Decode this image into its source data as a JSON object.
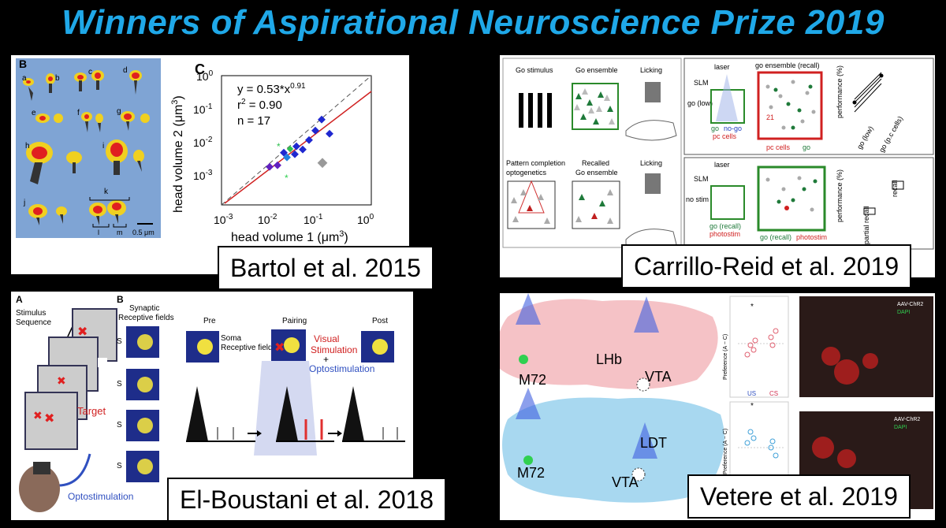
{
  "title": "Winners of Aspirational Neuroscience Prize 2019",
  "panels": {
    "p1": {
      "caption": "Bartol et al. 2015",
      "labels": {
        "B": "B",
        "C": "C",
        "a": "a",
        "b": "b",
        "c": "c",
        "d": "d",
        "e": "e",
        "f": "f",
        "g": "g",
        "h": "h",
        "i": "i",
        "j": "j",
        "k": "k",
        "l": "l",
        "m": "m",
        "scale": "0.5 μm"
      },
      "chart": {
        "eq": "y = 0.53*x",
        "exp": "0.91",
        "r2": "r",
        "r2b": "2",
        "r2c": " = 0.90",
        "n": "n = 17",
        "xlabel": "head volume 1 (μm",
        "ylabel": "head volume 2 (μm",
        "sup3": "3",
        "rp": ")",
        "yt": [
          "10",
          "10",
          "10",
          "10",
          "10"
        ],
        "ye": [
          "0",
          "-1",
          "-2",
          "-3",
          ""
        ],
        "xt": [
          "10",
          "10",
          "10",
          "10"
        ],
        "xe": [
          "-3",
          "-2",
          "-1",
          "0"
        ]
      }
    },
    "p2": {
      "caption": "Carrillo-Reid et al. 2019",
      "labels": {
        "gostim": "Go stimulus",
        "goens": "Go ensemble",
        "licking": "Licking",
        "pattern": "Pattern completion",
        "opto": "optogenetics",
        "recalled": "Recalled",
        "goens2": "Go ensemble",
        "licking2": "Licking",
        "laser": "laser",
        "slm": "SLM",
        "goensrecall": "go ensemble (recall)",
        "golow": "go (low)",
        "go": "go",
        "nogo": "no-go",
        "pc": "pc cells",
        "pc2": "pc cells",
        "go2": "go",
        "perf": "performance (%)",
        "n21": "21",
        "laser2": "laser",
        "slm2": "SLM",
        "nostim": "no stim",
        "gorecall": "go (recall)",
        "photostim": "photostim",
        "photostim2": "photostim",
        "gorecall2": "go (recall)",
        "perf2": "performance (%)",
        "partial": "partial recall",
        "recall": "recall",
        "golow2": "go (low)",
        "gopc": "go (p.c cells)"
      }
    },
    "p3": {
      "caption": "El-Boustani et al. 2018",
      "labels": {
        "A": "A",
        "B": "B",
        "stim": "Stimulus",
        "seq": "Sequence",
        "target": "Target",
        "optostim": "Optostimulation",
        "synaptic": "Synaptic",
        "rf": "Receptive fields",
        "pre": "Pre",
        "soma": "Soma",
        "rf2": "Receptive field",
        "pairing": "Pairing",
        "post": "Post",
        "visual": "Visual",
        "stimulation": "Stimulation",
        "plus": "+",
        "optostim2": "Optostimulation",
        "s1": "S",
        "s2": "S",
        "s3": "S",
        "s4": "S"
      }
    },
    "p4": {
      "caption": "Vetere et al. 2019",
      "labels": {
        "m72": "M72",
        "lhb": "LHb",
        "vta": "VTA",
        "m72b": "M72",
        "ldt": "LDT",
        "vta2": "VTA",
        "pref": "Preference (A − C)",
        "pref2": "Preference (A − C)",
        "us": "US",
        "cs": "CS",
        "star": "*",
        "star2": "*",
        "aav": "AAV-ChR2",
        "dapi": "DAPI",
        "aav2": "AAV-ChR2",
        "dapi2": "DAPI"
      }
    }
  }
}
